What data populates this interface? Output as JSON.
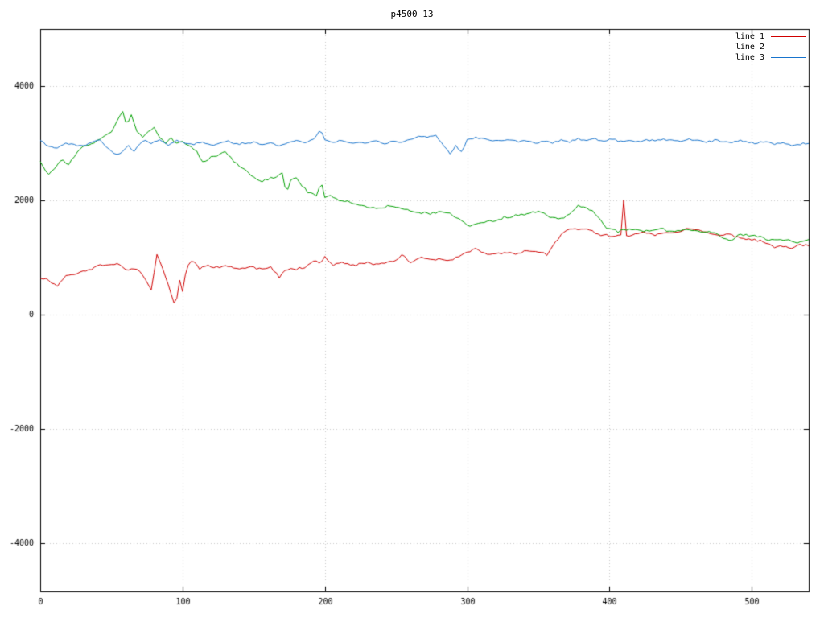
{
  "chart_data": {
    "type": "line",
    "title": "p4500_13",
    "xlabel": "",
    "ylabel": "",
    "xlim": [
      0,
      540
    ],
    "ylim": [
      -4850,
      5000
    ],
    "xticks": [
      0,
      100,
      200,
      300,
      400,
      500
    ],
    "yticks": [
      -4000,
      -2000,
      0,
      2000,
      4000
    ],
    "grid": "dotted",
    "legend_position": "top-right",
    "noise_seed": 11,
    "series": [
      {
        "name": "line 1",
        "color": "#d00000",
        "noise": 26,
        "points": [
          [
            0,
            650
          ],
          [
            6,
            600
          ],
          [
            12,
            500
          ],
          [
            18,
            680
          ],
          [
            25,
            720
          ],
          [
            32,
            760
          ],
          [
            40,
            850
          ],
          [
            48,
            870
          ],
          [
            55,
            900
          ],
          [
            60,
            780
          ],
          [
            65,
            820
          ],
          [
            70,
            760
          ],
          [
            74,
            620
          ],
          [
            78,
            430
          ],
          [
            82,
            1050
          ],
          [
            86,
            800
          ],
          [
            90,
            520
          ],
          [
            95,
            120
          ],
          [
            98,
            600
          ],
          [
            100,
            400
          ],
          [
            103,
            850
          ],
          [
            107,
            950
          ],
          [
            112,
            800
          ],
          [
            118,
            870
          ],
          [
            125,
            820
          ],
          [
            132,
            850
          ],
          [
            140,
            800
          ],
          [
            148,
            830
          ],
          [
            155,
            800
          ],
          [
            162,
            820
          ],
          [
            168,
            650
          ],
          [
            172,
            780
          ],
          [
            178,
            800
          ],
          [
            185,
            820
          ],
          [
            192,
            950
          ],
          [
            197,
            900
          ],
          [
            200,
            1000
          ],
          [
            205,
            880
          ],
          [
            212,
            900
          ],
          [
            220,
            860
          ],
          [
            228,
            900
          ],
          [
            235,
            880
          ],
          [
            242,
            900
          ],
          [
            250,
            950
          ],
          [
            255,
            1050
          ],
          [
            260,
            900
          ],
          [
            267,
            1000
          ],
          [
            274,
            950
          ],
          [
            280,
            970
          ],
          [
            287,
            940
          ],
          [
            294,
            1000
          ],
          [
            300,
            1100
          ],
          [
            305,
            1150
          ],
          [
            312,
            1080
          ],
          [
            320,
            1050
          ],
          [
            328,
            1100
          ],
          [
            335,
            1050
          ],
          [
            342,
            1120
          ],
          [
            350,
            1100
          ],
          [
            356,
            1050
          ],
          [
            362,
            1250
          ],
          [
            368,
            1450
          ],
          [
            374,
            1500
          ],
          [
            380,
            1480
          ],
          [
            386,
            1500
          ],
          [
            392,
            1400
          ],
          [
            398,
            1380
          ],
          [
            404,
            1350
          ],
          [
            408,
            1400
          ],
          [
            410,
            2000
          ],
          [
            412,
            1380
          ],
          [
            418,
            1420
          ],
          [
            425,
            1440
          ],
          [
            432,
            1400
          ],
          [
            440,
            1450
          ],
          [
            448,
            1430
          ],
          [
            455,
            1500
          ],
          [
            462,
            1480
          ],
          [
            470,
            1420
          ],
          [
            478,
            1380
          ],
          [
            485,
            1400
          ],
          [
            492,
            1350
          ],
          [
            500,
            1300
          ],
          [
            508,
            1280
          ],
          [
            515,
            1180
          ],
          [
            522,
            1200
          ],
          [
            528,
            1150
          ],
          [
            534,
            1220
          ],
          [
            540,
            1200
          ]
        ]
      },
      {
        "name": "line 2",
        "color": "#00a000",
        "noise": 28,
        "points": [
          [
            0,
            2680
          ],
          [
            5,
            2450
          ],
          [
            10,
            2550
          ],
          [
            15,
            2700
          ],
          [
            20,
            2620
          ],
          [
            26,
            2850
          ],
          [
            32,
            2950
          ],
          [
            38,
            3000
          ],
          [
            44,
            3100
          ],
          [
            50,
            3200
          ],
          [
            55,
            3450
          ],
          [
            58,
            3550
          ],
          [
            61,
            3300
          ],
          [
            64,
            3500
          ],
          [
            68,
            3200
          ],
          [
            72,
            3100
          ],
          [
            76,
            3200
          ],
          [
            80,
            3280
          ],
          [
            84,
            3100
          ],
          [
            88,
            3000
          ],
          [
            92,
            3080
          ],
          [
            96,
            2980
          ],
          [
            100,
            3020
          ],
          [
            105,
            2950
          ],
          [
            110,
            2850
          ],
          [
            115,
            2650
          ],
          [
            120,
            2750
          ],
          [
            125,
            2800
          ],
          [
            130,
            2850
          ],
          [
            135,
            2700
          ],
          [
            140,
            2600
          ],
          [
            145,
            2500
          ],
          [
            150,
            2400
          ],
          [
            155,
            2320
          ],
          [
            160,
            2380
          ],
          [
            165,
            2400
          ],
          [
            170,
            2480
          ],
          [
            173,
            2100
          ],
          [
            176,
            2350
          ],
          [
            180,
            2400
          ],
          [
            184,
            2250
          ],
          [
            188,
            2150
          ],
          [
            192,
            2100
          ],
          [
            195,
            2050
          ],
          [
            197,
            2380
          ],
          [
            200,
            2050
          ],
          [
            205,
            2080
          ],
          [
            210,
            2000
          ],
          [
            215,
            1980
          ],
          [
            220,
            1950
          ],
          [
            226,
            1900
          ],
          [
            232,
            1880
          ],
          [
            238,
            1850
          ],
          [
            244,
            1900
          ],
          [
            250,
            1870
          ],
          [
            256,
            1850
          ],
          [
            262,
            1820
          ],
          [
            268,
            1780
          ],
          [
            274,
            1760
          ],
          [
            280,
            1800
          ],
          [
            286,
            1780
          ],
          [
            292,
            1700
          ],
          [
            297,
            1620
          ],
          [
            302,
            1550
          ],
          [
            308,
            1600
          ],
          [
            314,
            1620
          ],
          [
            320,
            1650
          ],
          [
            326,
            1700
          ],
          [
            332,
            1720
          ],
          [
            338,
            1750
          ],
          [
            344,
            1780
          ],
          [
            350,
            1800
          ],
          [
            355,
            1760
          ],
          [
            360,
            1700
          ],
          [
            365,
            1650
          ],
          [
            370,
            1750
          ],
          [
            375,
            1820
          ],
          [
            378,
            1900
          ],
          [
            382,
            1880
          ],
          [
            386,
            1840
          ],
          [
            390,
            1750
          ],
          [
            394,
            1650
          ],
          [
            398,
            1500
          ],
          [
            402,
            1480
          ],
          [
            406,
            1450
          ],
          [
            410,
            1500
          ],
          [
            415,
            1480
          ],
          [
            420,
            1500
          ],
          [
            425,
            1450
          ],
          [
            430,
            1480
          ],
          [
            435,
            1500
          ],
          [
            440,
            1470
          ],
          [
            445,
            1450
          ],
          [
            450,
            1480
          ],
          [
            455,
            1500
          ],
          [
            460,
            1470
          ],
          [
            465,
            1440
          ],
          [
            470,
            1460
          ],
          [
            475,
            1420
          ],
          [
            480,
            1350
          ],
          [
            485,
            1280
          ],
          [
            490,
            1380
          ],
          [
            495,
            1400
          ],
          [
            500,
            1380
          ],
          [
            505,
            1350
          ],
          [
            510,
            1320
          ],
          [
            515,
            1300
          ],
          [
            520,
            1320
          ],
          [
            525,
            1300
          ],
          [
            530,
            1260
          ],
          [
            535,
            1290
          ],
          [
            540,
            1310
          ]
        ]
      },
      {
        "name": "line 3",
        "color": "#1874cd",
        "noise": 20,
        "points": [
          [
            0,
            3050
          ],
          [
            6,
            2950
          ],
          [
            12,
            2920
          ],
          [
            18,
            3000
          ],
          [
            24,
            2980
          ],
          [
            30,
            2950
          ],
          [
            36,
            3020
          ],
          [
            42,
            3050
          ],
          [
            48,
            2900
          ],
          [
            53,
            2780
          ],
          [
            57,
            2850
          ],
          [
            62,
            2950
          ],
          [
            66,
            2850
          ],
          [
            70,
            3000
          ],
          [
            74,
            3050
          ],
          [
            78,
            3000
          ],
          [
            84,
            3060
          ],
          [
            90,
            2950
          ],
          [
            96,
            3050
          ],
          [
            102,
            3000
          ],
          [
            108,
            2980
          ],
          [
            114,
            3020
          ],
          [
            120,
            2960
          ],
          [
            126,
            3000
          ],
          [
            132,
            3040
          ],
          [
            138,
            2980
          ],
          [
            144,
            3000
          ],
          [
            150,
            3020
          ],
          [
            156,
            2970
          ],
          [
            162,
            3010
          ],
          [
            168,
            2950
          ],
          [
            174,
            3000
          ],
          [
            180,
            3050
          ],
          [
            186,
            3020
          ],
          [
            192,
            3060
          ],
          [
            197,
            3250
          ],
          [
            200,
            3060
          ],
          [
            206,
            3010
          ],
          [
            212,
            3050
          ],
          [
            218,
            2990
          ],
          [
            224,
            3020
          ],
          [
            230,
            3000
          ],
          [
            236,
            3040
          ],
          [
            242,
            2990
          ],
          [
            248,
            3030
          ],
          [
            254,
            3010
          ],
          [
            260,
            3070
          ],
          [
            266,
            3120
          ],
          [
            272,
            3100
          ],
          [
            278,
            3130
          ],
          [
            284,
            2950
          ],
          [
            288,
            2820
          ],
          [
            292,
            2950
          ],
          [
            296,
            2850
          ],
          [
            300,
            3050
          ],
          [
            306,
            3100
          ],
          [
            312,
            3080
          ],
          [
            318,
            3050
          ],
          [
            324,
            3040
          ],
          [
            330,
            3070
          ],
          [
            336,
            3020
          ],
          [
            342,
            3050
          ],
          [
            348,
            3000
          ],
          [
            354,
            3040
          ],
          [
            360,
            3010
          ],
          [
            366,
            3050
          ],
          [
            372,
            3020
          ],
          [
            378,
            3080
          ],
          [
            384,
            3050
          ],
          [
            390,
            3070
          ],
          [
            396,
            3040
          ],
          [
            402,
            3060
          ],
          [
            408,
            3030
          ],
          [
            414,
            3050
          ],
          [
            420,
            3020
          ],
          [
            426,
            3060
          ],
          [
            432,
            3040
          ],
          [
            438,
            3070
          ],
          [
            444,
            3050
          ],
          [
            450,
            3030
          ],
          [
            456,
            3060
          ],
          [
            462,
            3040
          ],
          [
            468,
            3020
          ],
          [
            474,
            3050
          ],
          [
            480,
            3030
          ],
          [
            486,
            3010
          ],
          [
            492,
            3040
          ],
          [
            498,
            3020
          ],
          [
            504,
            3000
          ],
          [
            510,
            3030
          ],
          [
            516,
            2990
          ],
          [
            522,
            3010
          ],
          [
            528,
            2960
          ],
          [
            534,
            2980
          ],
          [
            540,
            3000
          ]
        ]
      }
    ],
    "colors": {
      "grid": "#c8c8c8",
      "axis": "#000000",
      "background": "#ffffff"
    }
  }
}
